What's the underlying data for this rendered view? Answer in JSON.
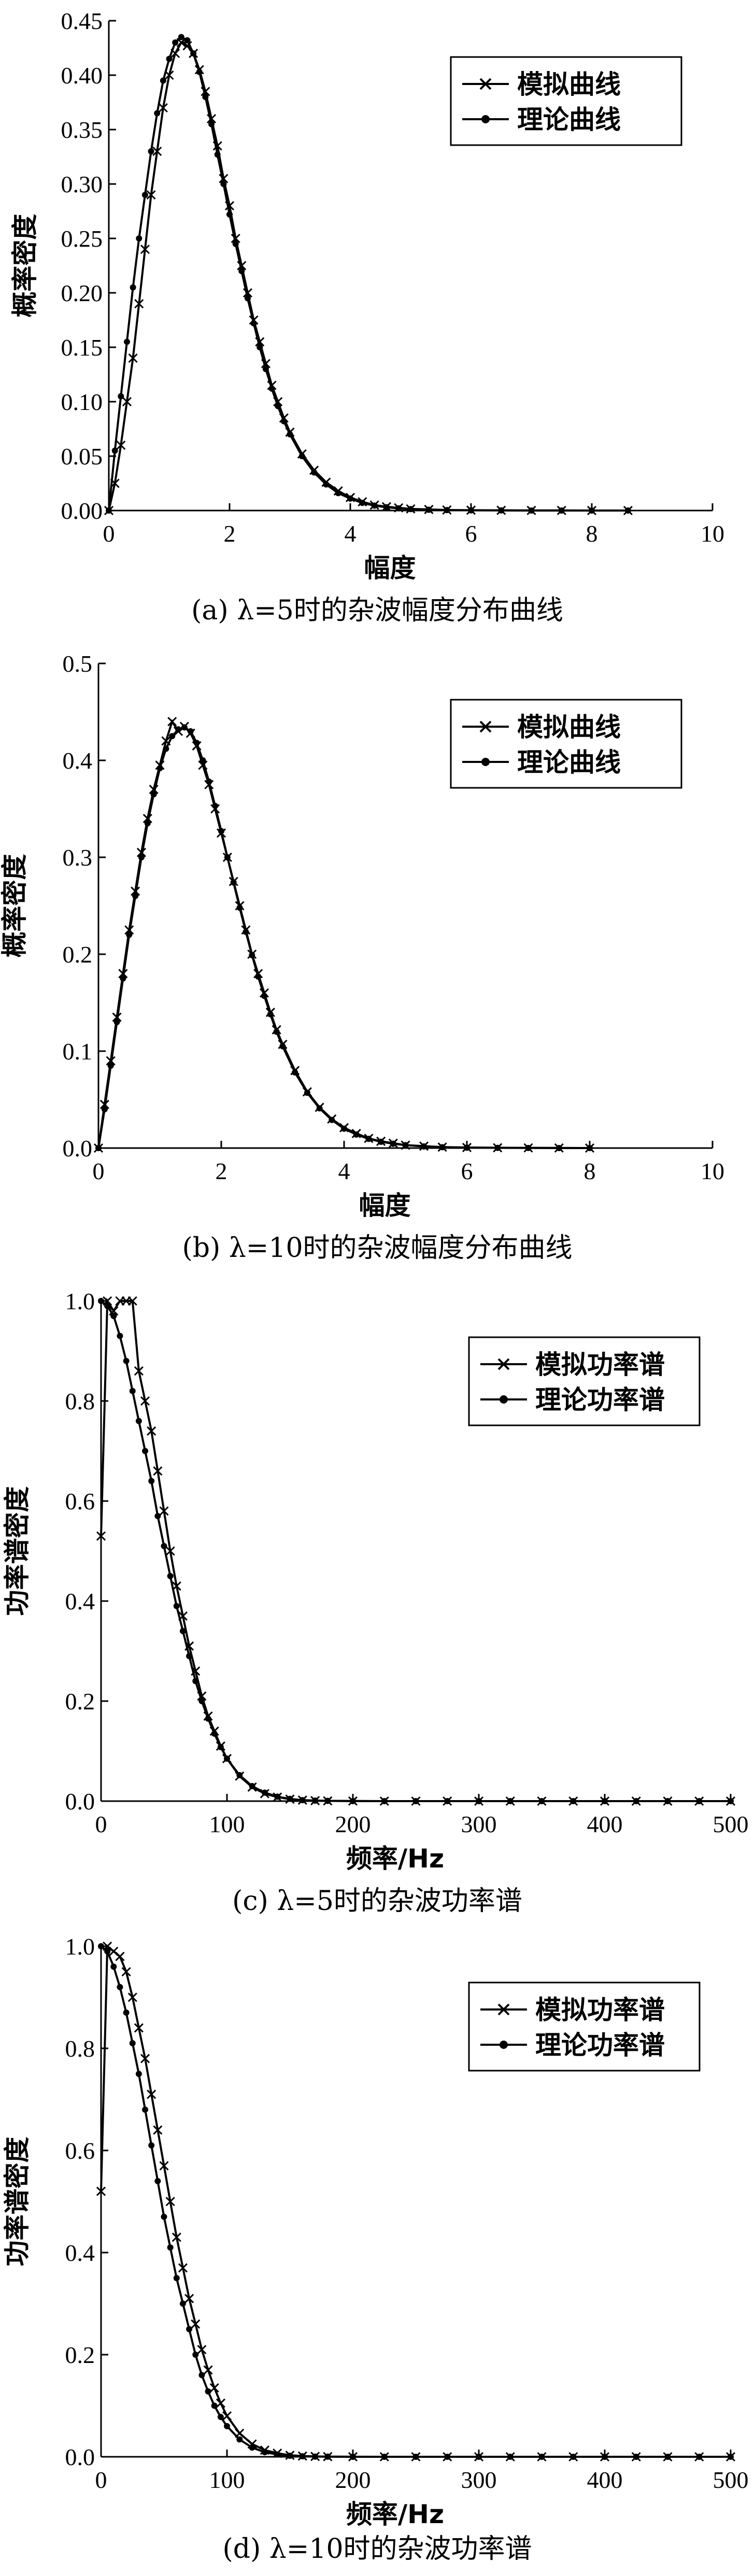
{
  "chart_data": [
    {
      "type": "line",
      "xlabel": "幅度",
      "ylabel": "概率密度",
      "caption": "(a) λ=5时的杂波幅度分布曲线",
      "xlim": [
        0,
        10
      ],
      "ylim": [
        0,
        0.45
      ],
      "xticks": [
        "0",
        "2",
        "4",
        "6",
        "8",
        "10"
      ],
      "yticks": [
        "0.00",
        "0.05",
        "0.10",
        "0.15",
        "0.20",
        "0.25",
        "0.30",
        "0.35",
        "0.40",
        "0.45"
      ],
      "legend_position": "top-right",
      "series": [
        {
          "name": "模拟曲线",
          "marker": "x",
          "x": [
            0,
            0.1,
            0.2,
            0.3,
            0.4,
            0.5,
            0.6,
            0.7,
            0.8,
            0.9,
            1.0,
            1.1,
            1.2,
            1.3,
            1.4,
            1.5,
            1.6,
            1.7,
            1.8,
            1.9,
            2.0,
            2.1,
            2.2,
            2.3,
            2.4,
            2.5,
            2.6,
            2.7,
            2.8,
            2.9,
            3.0,
            3.2,
            3.4,
            3.6,
            3.8,
            4.0,
            4.2,
            4.4,
            4.6,
            4.8,
            5.0,
            5.3,
            5.6,
            6.0,
            6.5,
            7.0,
            7.5,
            8.0,
            8.6
          ],
          "y": [
            0.0,
            0.025,
            0.06,
            0.1,
            0.14,
            0.19,
            0.24,
            0.29,
            0.33,
            0.37,
            0.4,
            0.42,
            0.43,
            0.427,
            0.42,
            0.405,
            0.385,
            0.36,
            0.335,
            0.305,
            0.28,
            0.25,
            0.225,
            0.2,
            0.175,
            0.155,
            0.135,
            0.115,
            0.1,
            0.085,
            0.072,
            0.052,
            0.037,
            0.026,
            0.018,
            0.012,
            0.008,
            0.005,
            0.0035,
            0.0025,
            0.0015,
            0.001,
            0.0005,
            0.0003,
            0.0002,
            0.0001,
            0.0001,
            0.0,
            0.0
          ]
        },
        {
          "name": "理论曲线",
          "marker": "dot",
          "x": [
            0,
            0.1,
            0.2,
            0.3,
            0.4,
            0.5,
            0.6,
            0.7,
            0.8,
            0.9,
            1.0,
            1.1,
            1.2,
            1.3,
            1.4,
            1.5,
            1.6,
            1.7,
            1.8,
            1.9,
            2.0,
            2.1,
            2.2,
            2.3,
            2.4,
            2.5,
            2.6,
            2.7,
            2.8,
            2.9,
            3.0,
            3.2,
            3.4,
            3.6,
            3.8,
            4.0,
            4.2,
            4.4,
            4.6,
            4.8,
            5.0,
            5.3,
            5.6,
            6.0,
            6.5,
            7.0,
            7.5,
            8.0,
            8.6
          ],
          "y": [
            0.0,
            0.055,
            0.105,
            0.155,
            0.205,
            0.25,
            0.29,
            0.33,
            0.365,
            0.395,
            0.415,
            0.43,
            0.435,
            0.432,
            0.42,
            0.403,
            0.38,
            0.355,
            0.327,
            0.3,
            0.272,
            0.245,
            0.22,
            0.195,
            0.172,
            0.15,
            0.13,
            0.112,
            0.096,
            0.082,
            0.07,
            0.05,
            0.035,
            0.024,
            0.016,
            0.011,
            0.007,
            0.0045,
            0.003,
            0.002,
            0.0013,
            0.0007,
            0.0004,
            0.0002,
            0.0001,
            0.0,
            0.0,
            0.0,
            0.0
          ]
        }
      ]
    },
    {
      "type": "line",
      "xlabel": "幅度",
      "ylabel": "概率密度",
      "caption": "(b) λ=10时的杂波幅度分布曲线",
      "xlim": [
        0,
        10
      ],
      "ylim": [
        0,
        0.5
      ],
      "xticks": [
        "0",
        "2",
        "4",
        "6",
        "8",
        "10"
      ],
      "yticks": [
        "0.0",
        "0.1",
        "0.2",
        "0.3",
        "0.4",
        "0.5"
      ],
      "legend_position": "top-right",
      "series": [
        {
          "name": "模拟曲线",
          "marker": "x",
          "x": [
            0,
            0.1,
            0.2,
            0.3,
            0.4,
            0.5,
            0.6,
            0.7,
            0.8,
            0.9,
            1.0,
            1.1,
            1.2,
            1.3,
            1.4,
            1.5,
            1.6,
            1.7,
            1.8,
            1.9,
            2.0,
            2.1,
            2.2,
            2.3,
            2.4,
            2.5,
            2.6,
            2.7,
            2.8,
            2.9,
            3.0,
            3.2,
            3.4,
            3.6,
            3.8,
            4.0,
            4.2,
            4.4,
            4.6,
            4.8,
            5.0,
            5.3,
            5.6,
            6.0,
            6.5,
            7.0,
            7.5,
            8.0
          ],
          "y": [
            0.0,
            0.045,
            0.09,
            0.135,
            0.18,
            0.225,
            0.265,
            0.305,
            0.34,
            0.37,
            0.395,
            0.42,
            0.44,
            0.43,
            0.435,
            0.428,
            0.415,
            0.395,
            0.375,
            0.35,
            0.325,
            0.3,
            0.275,
            0.25,
            0.225,
            0.2,
            0.18,
            0.16,
            0.14,
            0.122,
            0.107,
            0.08,
            0.058,
            0.042,
            0.03,
            0.021,
            0.015,
            0.01,
            0.007,
            0.005,
            0.003,
            0.002,
            0.001,
            0.0006,
            0.0003,
            0.0002,
            0.0001,
            0.0
          ]
        },
        {
          "name": "理论曲线",
          "marker": "dot",
          "x": [
            0,
            0.1,
            0.2,
            0.3,
            0.4,
            0.5,
            0.6,
            0.7,
            0.8,
            0.9,
            1.0,
            1.1,
            1.2,
            1.3,
            1.4,
            1.5,
            1.6,
            1.7,
            1.8,
            1.9,
            2.0,
            2.1,
            2.2,
            2.3,
            2.4,
            2.5,
            2.6,
            2.7,
            2.8,
            2.9,
            3.0,
            3.2,
            3.4,
            3.6,
            3.8,
            4.0,
            4.2,
            4.4,
            4.6,
            4.8,
            5.0,
            5.3,
            5.6,
            6.0,
            6.5,
            7.0,
            7.5,
            8.0
          ],
          "y": [
            0.0,
            0.04,
            0.085,
            0.13,
            0.175,
            0.22,
            0.26,
            0.3,
            0.335,
            0.365,
            0.392,
            0.412,
            0.425,
            0.432,
            0.434,
            0.43,
            0.418,
            0.4,
            0.378,
            0.353,
            0.327,
            0.3,
            0.274,
            0.248,
            0.223,
            0.199,
            0.177,
            0.157,
            0.138,
            0.12,
            0.105,
            0.078,
            0.057,
            0.041,
            0.029,
            0.02,
            0.014,
            0.0095,
            0.0065,
            0.0045,
            0.003,
            0.0017,
            0.0009,
            0.0004,
            0.0002,
            0.0001,
            0.0,
            0.0
          ]
        }
      ]
    },
    {
      "type": "line",
      "xlabel": "频率/Hz",
      "ylabel": "功率谱密度",
      "caption": "(c) λ=5时的杂波功率谱",
      "xlim": [
        0,
        500
      ],
      "ylim": [
        0,
        1.0
      ],
      "xticks": [
        "0",
        "100",
        "200",
        "300",
        "400",
        "500"
      ],
      "yticks": [
        "0.0",
        "0.2",
        "0.4",
        "0.6",
        "0.8",
        "1.0"
      ],
      "legend_position": "top-right",
      "series": [
        {
          "name": "模拟功率谱",
          "marker": "x",
          "x": [
            0,
            5,
            10,
            15,
            20,
            25,
            30,
            35,
            40,
            45,
            50,
            55,
            60,
            65,
            70,
            75,
            80,
            85,
            90,
            95,
            100,
            110,
            120,
            130,
            140,
            150,
            160,
            170,
            180,
            200,
            225,
            250,
            275,
            300,
            325,
            350,
            375,
            400,
            425,
            450,
            475,
            500
          ],
          "y": [
            0.53,
            1.0,
            0.98,
            1.0,
            1.0,
            1.0,
            0.86,
            0.8,
            0.74,
            0.66,
            0.58,
            0.5,
            0.43,
            0.37,
            0.31,
            0.26,
            0.21,
            0.17,
            0.14,
            0.11,
            0.085,
            0.05,
            0.028,
            0.015,
            0.008,
            0.004,
            0.002,
            0.001,
            0.0005,
            0.0002,
            0.0,
            0.0,
            0.0,
            0.0,
            0.0,
            0.0,
            0.0,
            0.0,
            0.0,
            0.0,
            0.0,
            0.0
          ]
        },
        {
          "name": "理论功率谱",
          "marker": "dot",
          "x": [
            0,
            5,
            10,
            15,
            20,
            25,
            30,
            35,
            40,
            45,
            50,
            55,
            60,
            65,
            70,
            75,
            80,
            85,
            90,
            95,
            100,
            110,
            120,
            130,
            140,
            150,
            160,
            170,
            180,
            200,
            225,
            250,
            275,
            300,
            325,
            350,
            375,
            400,
            425,
            450,
            475,
            500
          ],
          "y": [
            1.0,
            0.99,
            0.97,
            0.93,
            0.88,
            0.82,
            0.76,
            0.7,
            0.64,
            0.57,
            0.51,
            0.45,
            0.39,
            0.34,
            0.29,
            0.24,
            0.2,
            0.165,
            0.135,
            0.108,
            0.085,
            0.052,
            0.03,
            0.017,
            0.009,
            0.0045,
            0.002,
            0.001,
            0.0005,
            0.0001,
            0.0,
            0.0,
            0.0,
            0.0,
            0.0,
            0.0,
            0.0,
            0.0,
            0.0,
            0.0,
            0.0,
            0.0
          ]
        }
      ]
    },
    {
      "type": "line",
      "xlabel": "频率/Hz",
      "ylabel": "功率谱密度",
      "caption": "(d) λ=10时的杂波功率谱",
      "xlim": [
        0,
        500
      ],
      "ylim": [
        0,
        1.0
      ],
      "xticks": [
        "0",
        "100",
        "200",
        "300",
        "400",
        "500"
      ],
      "yticks": [
        "0.0",
        "0.2",
        "0.4",
        "0.6",
        "0.8",
        "1.0"
      ],
      "legend_position": "top-right",
      "series": [
        {
          "name": "模拟功率谱",
          "marker": "x",
          "x": [
            0,
            5,
            10,
            15,
            20,
            25,
            30,
            35,
            40,
            45,
            50,
            55,
            60,
            65,
            70,
            75,
            80,
            85,
            90,
            95,
            100,
            110,
            120,
            130,
            140,
            150,
            160,
            170,
            180,
            200,
            225,
            250,
            275,
            300,
            325,
            350,
            375,
            400,
            425,
            450,
            475,
            500
          ],
          "y": [
            0.52,
            1.0,
            0.99,
            0.98,
            0.95,
            0.9,
            0.84,
            0.78,
            0.71,
            0.64,
            0.57,
            0.5,
            0.43,
            0.37,
            0.31,
            0.26,
            0.21,
            0.17,
            0.135,
            0.105,
            0.08,
            0.046,
            0.025,
            0.013,
            0.007,
            0.003,
            0.0015,
            0.0007,
            0.0003,
            0.0001,
            0.0,
            0.0,
            0.0,
            0.0,
            0.0,
            0.0,
            0.0,
            0.0,
            0.0,
            0.0,
            0.0,
            0.0
          ]
        },
        {
          "name": "理论功率谱",
          "marker": "dot",
          "x": [
            0,
            5,
            10,
            15,
            20,
            25,
            30,
            35,
            40,
            45,
            50,
            55,
            60,
            65,
            70,
            75,
            80,
            85,
            90,
            95,
            100,
            110,
            120,
            130,
            140,
            150,
            160,
            170,
            180,
            200,
            225,
            250,
            275,
            300,
            325,
            350,
            375,
            400,
            425,
            450,
            475,
            500
          ],
          "y": [
            1.0,
            0.99,
            0.96,
            0.92,
            0.87,
            0.81,
            0.75,
            0.68,
            0.61,
            0.54,
            0.47,
            0.41,
            0.35,
            0.3,
            0.25,
            0.2,
            0.16,
            0.128,
            0.1,
            0.078,
            0.06,
            0.034,
            0.018,
            0.009,
            0.0045,
            0.002,
            0.001,
            0.0004,
            0.0002,
            0.0,
            0.0,
            0.0,
            0.0,
            0.0,
            0.0,
            0.0,
            0.0,
            0.0,
            0.0,
            0.0,
            0.0,
            0.0
          ]
        }
      ]
    }
  ]
}
